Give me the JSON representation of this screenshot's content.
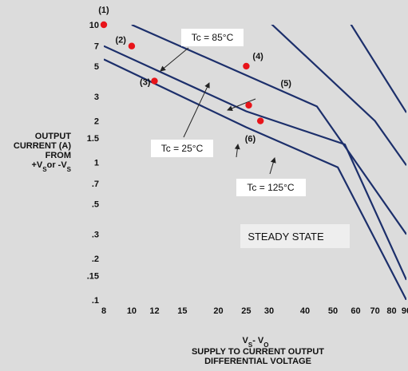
{
  "chart_data": {
    "type": "line",
    "scale": {
      "x": "log",
      "y": "log"
    },
    "xlim": [
      8,
      90
    ],
    "ylim": [
      0.1,
      10
    ],
    "x_ticks": [
      {
        "v": 8,
        "label": "8"
      },
      {
        "v": 10,
        "label": "10"
      },
      {
        "v": 12,
        "label": "12"
      },
      {
        "v": 15,
        "label": "15"
      },
      {
        "v": 20,
        "label": "20"
      },
      {
        "v": 25,
        "label": "25"
      },
      {
        "v": 30,
        "label": "30"
      },
      {
        "v": 40,
        "label": "40"
      },
      {
        "v": 50,
        "label": "50"
      },
      {
        "v": 60,
        "label": "60"
      },
      {
        "v": 70,
        "label": "70"
      },
      {
        "v": 80,
        "label": "80"
      },
      {
        "v": 90,
        "label": "90"
      }
    ],
    "y_ticks": [
      {
        "v": 10,
        "label": "10"
      },
      {
        "v": 7,
        "label": "7"
      },
      {
        "v": 5,
        "label": "5"
      },
      {
        "v": 3,
        "label": "3"
      },
      {
        "v": 2,
        "label": "2"
      },
      {
        "v": 1.5,
        "label": "1.5"
      },
      {
        "v": 1,
        "label": "1"
      },
      {
        "v": 0.7,
        "label": ".7"
      },
      {
        "v": 0.5,
        "label": ".5"
      },
      {
        "v": 0.3,
        "label": ".3"
      },
      {
        "v": 0.2,
        "label": ".2"
      },
      {
        "v": 0.15,
        "label": ".15"
      },
      {
        "v": 0.1,
        "label": ".1"
      }
    ],
    "ylabel_lines": [
      "OUTPUT",
      "CURRENT (A)",
      "FROM"
    ],
    "ylabel_last": {
      "a": "+V",
      "a_sub": "S",
      "mid": "or -V",
      "b_sub": "S"
    },
    "xlabel_formula": {
      "a": "V",
      "a_sub": "S",
      "mid": "- V",
      "b_sub": "O"
    },
    "xlabel_lines": [
      "SUPPLY TO CURRENT OUTPUT",
      "DIFFERENTIAL VOLTAGE"
    ],
    "series": [
      {
        "color": "#1c2f6b",
        "points": [
          [
            8,
            5.6
          ],
          [
            25,
            1.8
          ],
          [
            52,
            0.92
          ],
          [
            90,
            0.1
          ]
        ]
      },
      {
        "color": "#1c2f6b",
        "points": [
          [
            8,
            7.0
          ],
          [
            25,
            2.35
          ],
          [
            55,
            1.35
          ],
          [
            90,
            0.14
          ]
        ]
      },
      {
        "color": "#1c2f6b",
        "points": [
          [
            10,
            10.0
          ],
          [
            44,
            2.55
          ],
          [
            90,
            0.3
          ]
        ]
      },
      {
        "color": "#1c2f6b",
        "points": [
          [
            30,
            10.5
          ],
          [
            70,
            2.0
          ],
          [
            90,
            0.95
          ]
        ]
      },
      {
        "color": "#1c2f6b",
        "points": [
          [
            57,
            10.5
          ],
          [
            90,
            2.3
          ]
        ]
      }
    ],
    "markers": [
      {
        "id": "1",
        "label": "(1)",
        "x": 8,
        "y": 10.0
      },
      {
        "id": "2",
        "label": "(2)",
        "x": 10,
        "y": 7.0
      },
      {
        "id": "3",
        "label": "(3)",
        "x": 12,
        "y": 3.9
      },
      {
        "id": "4",
        "label": "(4)",
        "x": 25,
        "y": 5.0
      },
      {
        "id": "5",
        "label": "(5)",
        "x": 25.5,
        "y": 2.6
      },
      {
        "id": "6",
        "label": "(6)",
        "x": 28,
        "y": 2.0
      }
    ],
    "marker_color": "#e8141a",
    "annotations": [
      {
        "id": "tc85",
        "text": "Tc = 85°C"
      },
      {
        "id": "tc25",
        "text": "Tc = 25°C"
      },
      {
        "id": "tc125",
        "text": "Tc = 125°C"
      },
      {
        "id": "steady",
        "text": "STEADY STATE"
      }
    ]
  }
}
